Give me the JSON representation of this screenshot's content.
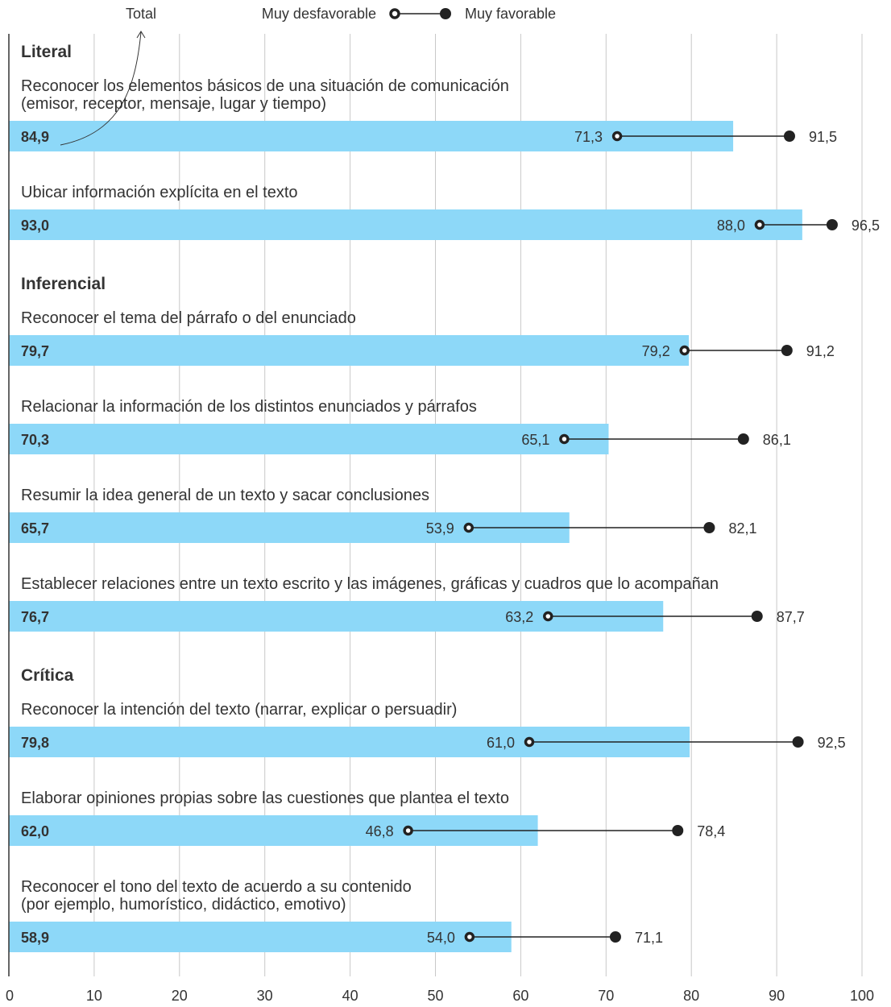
{
  "legend": {
    "total_label": "Total",
    "low_label": "Muy desfavorable",
    "high_label": "Muy favorable"
  },
  "colors": {
    "bar": "#8dd8f8",
    "grid": "#c8c8c8",
    "axis": "#333333",
    "marker": "#222222",
    "text": "#333333"
  },
  "chart_data": {
    "type": "bar",
    "orientation": "horizontal",
    "xlim": [
      0,
      100
    ],
    "x_ticks": [
      0,
      10,
      20,
      30,
      40,
      50,
      60,
      70,
      80,
      90,
      100
    ],
    "grid": true,
    "series": [
      {
        "name": "Total",
        "encoding": "bar"
      },
      {
        "name": "Muy desfavorable",
        "encoding": "open-circle"
      },
      {
        "name": "Muy favorable",
        "encoding": "filled-circle"
      }
    ],
    "groups": [
      {
        "name": "Literal",
        "items": [
          {
            "label": [
              "Reconocer los elementos básicos de una situación de comunicación",
              "(emisor, receptor, mensaje, lugar y tiempo)"
            ],
            "total": 84.9,
            "total_text": "84,9",
            "low": 71.3,
            "low_text": "71,3",
            "high": 91.5,
            "high_text": "91,5"
          },
          {
            "label": [
              "Ubicar información explícita en el texto"
            ],
            "total": 93.0,
            "total_text": "93,0",
            "low": 88.0,
            "low_text": "88,0",
            "high": 96.5,
            "high_text": "96,5"
          }
        ]
      },
      {
        "name": "Inferencial",
        "items": [
          {
            "label": [
              "Reconocer el tema del párrafo o del enunciado"
            ],
            "total": 79.7,
            "total_text": "79,7",
            "low": 79.2,
            "low_text": "79,2",
            "high": 91.2,
            "high_text": "91,2"
          },
          {
            "label": [
              "Relacionar la información de los distintos enunciados y párrafos"
            ],
            "total": 70.3,
            "total_text": "70,3",
            "low": 65.1,
            "low_text": "65,1",
            "high": 86.1,
            "high_text": "86,1"
          },
          {
            "label": [
              "Resumir la idea general de un texto y sacar conclusiones"
            ],
            "total": 65.7,
            "total_text": "65,7",
            "low": 53.9,
            "low_text": "53,9",
            "high": 82.1,
            "high_text": "82,1"
          },
          {
            "label": [
              "Establecer relaciones entre un texto escrito y las imágenes, gráficas y cuadros que lo acompañan"
            ],
            "total": 76.7,
            "total_text": "76,7",
            "low": 63.2,
            "low_text": "63,2",
            "high": 87.7,
            "high_text": "87,7"
          }
        ]
      },
      {
        "name": "Crítica",
        "items": [
          {
            "label": [
              "Reconocer la intención del texto (narrar, explicar o persuadir)"
            ],
            "total": 79.8,
            "total_text": "79,8",
            "low": 61.0,
            "low_text": "61,0",
            "high": 92.5,
            "high_text": "92,5"
          },
          {
            "label": [
              "Elaborar opiniones propias sobre las cuestiones que plantea el texto"
            ],
            "total": 62.0,
            "total_text": "62,0",
            "low": 46.8,
            "low_text": "46,8",
            "high": 78.4,
            "high_text": "78,4"
          },
          {
            "label": [
              "Reconocer el tono del texto  de acuerdo a su contenido",
              "(por ejemplo, humorístico, didáctico, emotivo)"
            ],
            "total": 58.9,
            "total_text": "58,9",
            "low": 54.0,
            "low_text": "54,0",
            "high": 71.1,
            "high_text": "71,1"
          }
        ]
      }
    ]
  }
}
